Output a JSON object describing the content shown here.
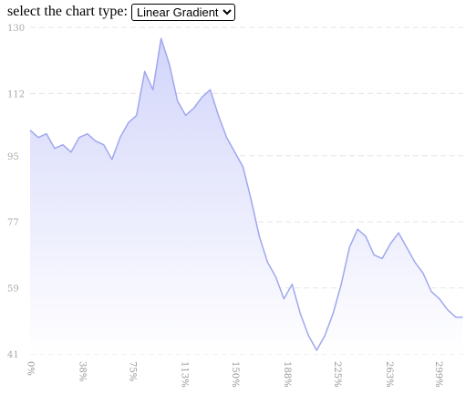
{
  "controls": {
    "chart_type_label": "select the chart type:",
    "chart_type_selected": "Linear Gradient"
  },
  "chart_data": {
    "type": "area",
    "title": "",
    "xlabel": "",
    "ylabel": "",
    "fill": "linear-gradient",
    "colors": {
      "line": "#a0a7ee",
      "fill_top": "#d2d5fa",
      "fill_bottom": "#ffffff",
      "grid": "#e5e5e5",
      "tick_text": "#aaaaaa"
    },
    "grid": "horizontal-dashed",
    "x_unit": "%",
    "xlim": [
      0,
      317.4
    ],
    "ylim": [
      41,
      130
    ],
    "y_ticks": [
      41,
      59,
      77,
      95,
      112,
      130
    ],
    "x_ticks": [
      0,
      38,
      75,
      113,
      150,
      188,
      225,
      263,
      299
    ],
    "series": [
      {
        "x": [
          0,
          6,
          12,
          18,
          24,
          30,
          36,
          42,
          48,
          54,
          60,
          66,
          72,
          78,
          84,
          90,
          96,
          102,
          108,
          114,
          120,
          126,
          132,
          138,
          144,
          150,
          156,
          162,
          168,
          174,
          180,
          186,
          192,
          198,
          204,
          210,
          216,
          222,
          228,
          234,
          240,
          246,
          252,
          258,
          264,
          270,
          276,
          282,
          288,
          294,
          300,
          306,
          312,
          317
        ],
        "values": [
          102,
          100,
          101,
          97,
          98,
          96,
          100,
          101,
          99,
          98,
          94,
          100,
          104,
          106,
          118,
          113,
          127,
          120,
          110,
          106,
          108,
          111,
          113,
          106,
          100,
          96,
          92,
          83,
          73,
          66,
          62,
          56,
          60,
          52,
          46,
          42,
          46,
          52,
          60,
          70,
          75,
          73,
          68,
          67,
          71,
          74,
          70,
          66,
          63,
          58,
          56,
          53,
          51,
          51
        ]
      }
    ]
  }
}
